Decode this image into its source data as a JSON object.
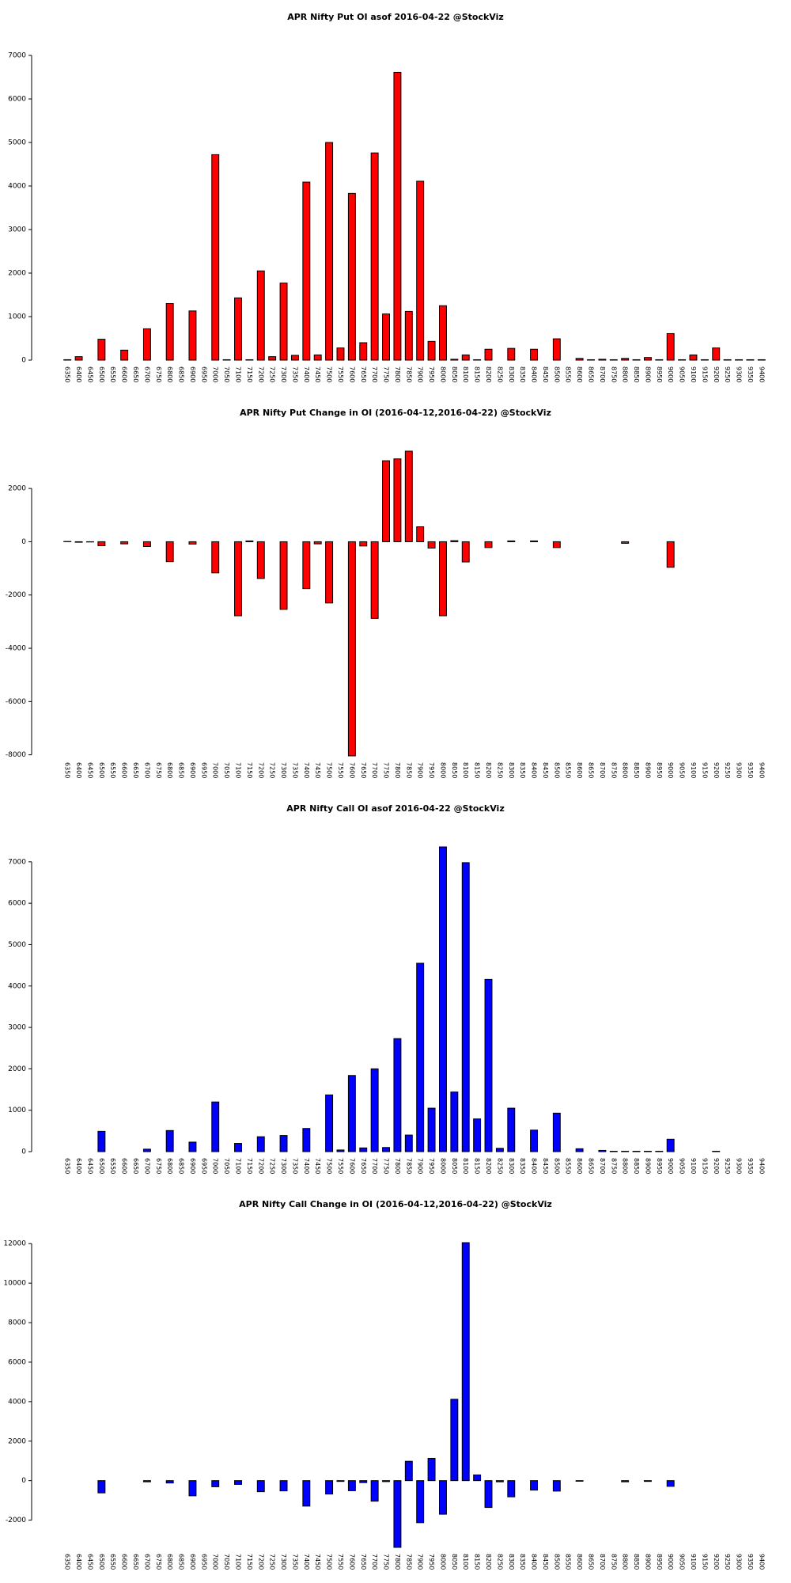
{
  "chart_data": [
    {
      "type": "bar",
      "title": "APR Nifty Put OI asof 2016-04-22 @StockViz",
      "color": "#ff0000",
      "categories": [
        "6350",
        "6400",
        "6450",
        "6500",
        "6550",
        "6600",
        "6650",
        "6700",
        "6750",
        "6800",
        "6850",
        "6900",
        "6950",
        "7000",
        "7050",
        "7100",
        "7150",
        "7200",
        "7250",
        "7300",
        "7350",
        "7400",
        "7450",
        "7500",
        "7550",
        "7600",
        "7650",
        "7700",
        "7750",
        "7800",
        "7850",
        "7900",
        "7950",
        "8000",
        "8050",
        "8100",
        "8150",
        "8200",
        "8250",
        "8300",
        "8350",
        "8400",
        "8450",
        "8500",
        "8550",
        "8600",
        "8650",
        "8700",
        "8750",
        "8800",
        "8850",
        "8900",
        "8950",
        "9000",
        "9050",
        "9100",
        "9150",
        "9200",
        "9250",
        "9300",
        "9350",
        "9400"
      ],
      "values": [
        10,
        80,
        0,
        480,
        0,
        230,
        0,
        720,
        0,
        1300,
        0,
        1130,
        0,
        4720,
        10,
        1430,
        10,
        2050,
        80,
        1770,
        110,
        4090,
        120,
        5000,
        280,
        3830,
        400,
        4760,
        1060,
        6610,
        1120,
        4110,
        430,
        1250,
        20,
        120,
        10,
        250,
        0,
        270,
        0,
        250,
        0,
        490,
        0,
        40,
        10,
        20,
        10,
        40,
        10,
        60,
        10,
        610,
        10,
        120,
        10,
        280,
        10,
        10,
        10,
        10
      ],
      "ylim": [
        0,
        7000
      ],
      "yticks": [
        0,
        1000,
        2000,
        3000,
        4000,
        5000,
        6000,
        7000
      ]
    },
    {
      "type": "bar",
      "title": "APR Nifty Put Change in OI (2016-04-12,2016-04-22) @StockViz",
      "color": "#ff0000",
      "categories": [
        "6350",
        "6400",
        "6450",
        "6500",
        "6550",
        "6600",
        "6650",
        "6700",
        "6750",
        "6800",
        "6850",
        "6900",
        "6950",
        "7000",
        "7050",
        "7100",
        "7150",
        "7200",
        "7250",
        "7300",
        "7350",
        "7400",
        "7450",
        "7500",
        "7550",
        "7600",
        "7650",
        "7700",
        "7750",
        "7800",
        "7850",
        "7900",
        "7950",
        "8000",
        "8050",
        "8100",
        "8150",
        "8200",
        "8250",
        "8300",
        "8350",
        "8400",
        "8450",
        "8500",
        "8550",
        "8600",
        "8650",
        "8700",
        "8750",
        "8800",
        "8850",
        "8900",
        "8950",
        "9000",
        "9050",
        "9100",
        "9150",
        "9200",
        "9250",
        "9300",
        "9350",
        "9400"
      ],
      "values": [
        10,
        -20,
        -10,
        -150,
        0,
        -80,
        0,
        -180,
        0,
        -750,
        0,
        -90,
        0,
        -1170,
        0,
        -2780,
        30,
        -1380,
        0,
        -2540,
        0,
        -1760,
        -80,
        -2300,
        0,
        -8040,
        -160,
        -2880,
        3040,
        3110,
        3400,
        560,
        -240,
        -2780,
        40,
        -760,
        0,
        -220,
        0,
        30,
        0,
        30,
        0,
        -220,
        0,
        0,
        0,
        0,
        0,
        -60,
        0,
        0,
        0,
        -960,
        0,
        0,
        0,
        0,
        0,
        0,
        0,
        0
      ],
      "ylim": [
        -8040,
        3400
      ],
      "yticks": [
        -8000,
        -6000,
        -4000,
        -2000,
        0,
        2000
      ]
    },
    {
      "type": "bar",
      "title": "APR Nifty Call OI asof 2016-04-22 @StockViz",
      "color": "#0000ff",
      "categories": [
        "6350",
        "6400",
        "6450",
        "6500",
        "6550",
        "6600",
        "6650",
        "6700",
        "6750",
        "6800",
        "6850",
        "6900",
        "6950",
        "7000",
        "7050",
        "7100",
        "7150",
        "7200",
        "7250",
        "7300",
        "7350",
        "7400",
        "7450",
        "7500",
        "7550",
        "7600",
        "7650",
        "7700",
        "7750",
        "7800",
        "7850",
        "7900",
        "7950",
        "8000",
        "8050",
        "8100",
        "8150",
        "8200",
        "8250",
        "8300",
        "8350",
        "8400",
        "8450",
        "8500",
        "8550",
        "8600",
        "8650",
        "8700",
        "8750",
        "8800",
        "8850",
        "8900",
        "8950",
        "9000",
        "9050",
        "9100",
        "9150",
        "9200",
        "9250",
        "9300",
        "9350",
        "9400"
      ],
      "values": [
        0,
        0,
        0,
        490,
        0,
        0,
        0,
        60,
        0,
        510,
        0,
        230,
        0,
        1200,
        0,
        200,
        0,
        360,
        0,
        390,
        0,
        560,
        0,
        1370,
        40,
        1840,
        90,
        2000,
        100,
        2730,
        400,
        4550,
        1050,
        7360,
        1440,
        6980,
        790,
        4160,
        80,
        1050,
        0,
        520,
        0,
        930,
        0,
        70,
        0,
        30,
        10,
        10,
        10,
        10,
        10,
        300,
        0,
        0,
        0,
        10,
        0,
        0,
        0,
        0
      ],
      "ylim": [
        0,
        7360
      ],
      "yticks": [
        0,
        1000,
        2000,
        3000,
        4000,
        5000,
        6000,
        7000
      ]
    },
    {
      "type": "bar",
      "title": "APR Nifty Call Change in OI (2016-04-12,2016-04-22) @StockViz",
      "color": "#0000ff",
      "categories": [
        "6350",
        "6400",
        "6450",
        "6500",
        "6550",
        "6600",
        "6650",
        "6700",
        "6750",
        "6800",
        "6850",
        "6900",
        "6950",
        "7000",
        "7050",
        "7100",
        "7150",
        "7200",
        "7250",
        "7300",
        "7350",
        "7400",
        "7450",
        "7500",
        "7550",
        "7600",
        "7650",
        "7700",
        "7750",
        "7800",
        "7850",
        "7900",
        "7950",
        "8000",
        "8050",
        "8100",
        "8150",
        "8200",
        "8250",
        "8300",
        "8350",
        "8400",
        "8450",
        "8500",
        "8550",
        "8600",
        "8650",
        "8700",
        "8750",
        "8800",
        "8850",
        "8900",
        "8950",
        "9000",
        "9050",
        "9100",
        "9150",
        "9200",
        "9250",
        "9300",
        "9350",
        "9400"
      ],
      "values": [
        0,
        0,
        0,
        -620,
        0,
        0,
        0,
        -60,
        0,
        -120,
        0,
        -770,
        0,
        -310,
        0,
        -190,
        0,
        -560,
        0,
        -520,
        0,
        -1290,
        0,
        -680,
        -40,
        -510,
        -100,
        -1040,
        -50,
        -3380,
        980,
        -2130,
        1130,
        -1700,
        4120,
        12050,
        290,
        -1360,
        -60,
        -820,
        0,
        -480,
        0,
        -530,
        0,
        -30,
        0,
        0,
        0,
        -60,
        0,
        -40,
        0,
        -290,
        0,
        0,
        0,
        0,
        0,
        0,
        0,
        0
      ],
      "ylim": [
        -3380,
        12050
      ],
      "yticks": [
        -2000,
        0,
        2000,
        4000,
        6000,
        8000,
        10000,
        12000
      ]
    }
  ]
}
